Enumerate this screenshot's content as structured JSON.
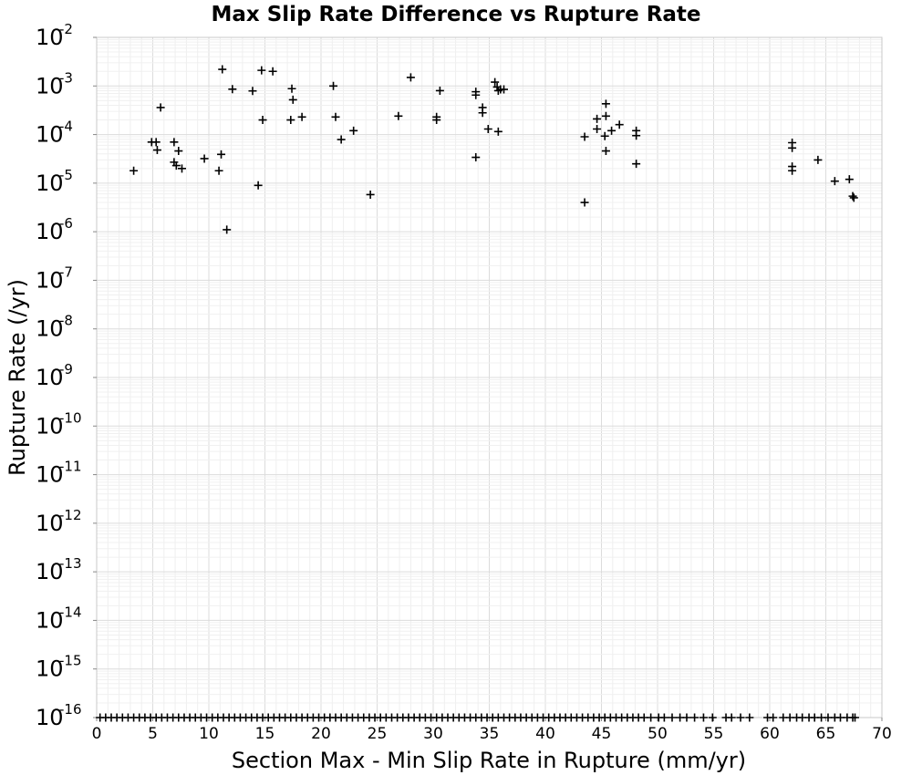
{
  "chart_data": {
    "type": "scatter",
    "title": "Max Slip Rate Difference vs Rupture Rate",
    "xlabel": "Section Max - Min Slip Rate in Rupture (mm/yr)",
    "ylabel": "Rupture Rate (/yr)",
    "xlim": [
      0,
      70
    ],
    "ylim": [
      1e-16,
      0.01
    ],
    "y_scale": "log",
    "grid": true,
    "legend": "none",
    "marker": "plus",
    "marker_color": "#000000",
    "x_ticks": [
      "0",
      "5",
      "10",
      "15",
      "20",
      "25",
      "30",
      "35",
      "40",
      "45",
      "50",
      "55",
      "60",
      "65",
      "70"
    ],
    "y_ticks": [
      {
        "base": "10",
        "exp": "-16"
      },
      {
        "base": "10",
        "exp": "-15"
      },
      {
        "base": "10",
        "exp": "-14"
      },
      {
        "base": "10",
        "exp": "-13"
      },
      {
        "base": "10",
        "exp": "-12"
      },
      {
        "base": "10",
        "exp": "-11"
      },
      {
        "base": "10",
        "exp": "-10"
      },
      {
        "base": "10",
        "exp": "-9"
      },
      {
        "base": "10",
        "exp": "-8"
      },
      {
        "base": "10",
        "exp": "-7"
      },
      {
        "base": "10",
        "exp": "-6"
      },
      {
        "base": "10",
        "exp": "-5"
      },
      {
        "base": "10",
        "exp": "-4"
      },
      {
        "base": "10",
        "exp": "-3"
      },
      {
        "base": "10",
        "exp": "-2"
      }
    ],
    "points": [
      {
        "x": 3.3,
        "y": 1.8e-05
      },
      {
        "x": 4.9,
        "y": 7e-05
      },
      {
        "x": 5.3,
        "y": 7e-05
      },
      {
        "x": 5.4,
        "y": 4.8e-05
      },
      {
        "x": 5.7,
        "y": 0.00036
      },
      {
        "x": 6.9,
        "y": 7e-05
      },
      {
        "x": 6.9,
        "y": 2.7e-05
      },
      {
        "x": 7.1,
        "y": 2.3e-05
      },
      {
        "x": 7.3,
        "y": 4.6e-05
      },
      {
        "x": 7.6,
        "y": 2e-05
      },
      {
        "x": 9.6,
        "y": 3.2e-05
      },
      {
        "x": 10.9,
        "y": 1.8e-05
      },
      {
        "x": 11.1,
        "y": 3.9e-05
      },
      {
        "x": 11.2,
        "y": 0.0022
      },
      {
        "x": 11.6,
        "y": 1.1e-06
      },
      {
        "x": 12.1,
        "y": 0.00086
      },
      {
        "x": 13.9,
        "y": 0.00079
      },
      {
        "x": 14.4,
        "y": 9e-06
      },
      {
        "x": 14.7,
        "y": 0.0021
      },
      {
        "x": 14.8,
        "y": 0.0002
      },
      {
        "x": 15.7,
        "y": 0.002
      },
      {
        "x": 17.3,
        "y": 0.0002
      },
      {
        "x": 17.4,
        "y": 0.00088
      },
      {
        "x": 17.5,
        "y": 0.00052
      },
      {
        "x": 18.3,
        "y": 0.00023
      },
      {
        "x": 21.1,
        "y": 0.001
      },
      {
        "x": 21.3,
        "y": 0.00023
      },
      {
        "x": 21.8,
        "y": 7.9e-05
      },
      {
        "x": 22.9,
        "y": 0.00012
      },
      {
        "x": 24.4,
        "y": 5.8e-06
      },
      {
        "x": 26.9,
        "y": 0.00024
      },
      {
        "x": 28.0,
        "y": 0.0015
      },
      {
        "x": 30.3,
        "y": 0.00023
      },
      {
        "x": 30.3,
        "y": 0.0002
      },
      {
        "x": 30.6,
        "y": 0.0008
      },
      {
        "x": 33.8,
        "y": 0.00076
      },
      {
        "x": 33.8,
        "y": 0.00065
      },
      {
        "x": 33.8,
        "y": 3.4e-05
      },
      {
        "x": 34.4,
        "y": 0.00036
      },
      {
        "x": 34.4,
        "y": 0.00028
      },
      {
        "x": 34.9,
        "y": 0.00013
      },
      {
        "x": 35.5,
        "y": 0.0012
      },
      {
        "x": 35.7,
        "y": 0.00095
      },
      {
        "x": 35.8,
        "y": 0.000115
      },
      {
        "x": 35.8,
        "y": 0.0008
      },
      {
        "x": 36.0,
        "y": 0.00085
      },
      {
        "x": 36.3,
        "y": 0.00085
      },
      {
        "x": 43.5,
        "y": 9e-05
      },
      {
        "x": 43.5,
        "y": 4e-06
      },
      {
        "x": 44.6,
        "y": 0.00021
      },
      {
        "x": 44.6,
        "y": 0.00013
      },
      {
        "x": 45.3,
        "y": 9.3e-05
      },
      {
        "x": 45.4,
        "y": 0.00043
      },
      {
        "x": 45.4,
        "y": 0.00024
      },
      {
        "x": 45.4,
        "y": 4.6e-05
      },
      {
        "x": 45.9,
        "y": 0.00012
      },
      {
        "x": 46.6,
        "y": 0.00016
      },
      {
        "x": 48.1,
        "y": 0.00012
      },
      {
        "x": 48.1,
        "y": 9.5e-05
      },
      {
        "x": 48.1,
        "y": 2.5e-05
      },
      {
        "x": 62.0,
        "y": 6.8e-05
      },
      {
        "x": 62.0,
        "y": 5.3e-05
      },
      {
        "x": 62.0,
        "y": 2.2e-05
      },
      {
        "x": 62.0,
        "y": 1.8e-05
      },
      {
        "x": 64.3,
        "y": 3e-05
      },
      {
        "x": 65.8,
        "y": 1.1e-05
      },
      {
        "x": 67.1,
        "y": 1.2e-05
      },
      {
        "x": 67.4,
        "y": 5.4e-06
      },
      {
        "x": 67.5,
        "y": 5e-06
      }
    ],
    "floor_points_x": [
      0.3,
      0.8,
      1.3,
      1.8,
      2.3,
      2.8,
      3.3,
      3.8,
      4.3,
      4.8,
      5.3,
      5.8,
      6.3,
      6.8,
      7.3,
      7.8,
      8.3,
      8.8,
      9.3,
      9.8,
      10.3,
      10.8,
      11.3,
      11.8,
      12.3,
      12.8,
      13.3,
      13.8,
      14.3,
      14.8,
      15.3,
      15.8,
      16.3,
      16.8,
      17.3,
      17.8,
      18.3,
      18.8,
      19.3,
      19.8,
      20.3,
      20.8,
      21.3,
      21.8,
      22.3,
      22.8,
      23.3,
      23.8,
      24.3,
      24.8,
      25.3,
      25.8,
      26.3,
      26.8,
      27.3,
      27.8,
      28.3,
      28.8,
      29.3,
      29.8,
      30.3,
      30.8,
      31.3,
      31.8,
      32.3,
      32.8,
      33.3,
      33.8,
      34.3,
      34.8,
      35.3,
      35.8,
      36.3,
      36.8,
      37.3,
      37.8,
      38.3,
      38.8,
      39.3,
      39.8,
      40.3,
      40.8,
      41.3,
      41.8,
      42.3,
      42.8,
      43.3,
      43.8,
      44.3,
      44.8,
      45.3,
      45.8,
      46.3,
      46.8,
      47.3,
      47.8,
      48.3,
      48.8,
      49.4,
      50.1,
      50.6,
      51.3,
      52.0,
      52.6,
      53.3,
      54.1,
      54.9,
      56.1,
      56.6,
      57.4,
      58.2,
      59.8,
      60.3,
      61.2,
      61.8,
      62.4,
      62.9,
      63.5,
      64.0,
      64.6,
      65.2,
      65.8,
      66.3,
      66.9,
      67.4,
      67.6
    ]
  }
}
